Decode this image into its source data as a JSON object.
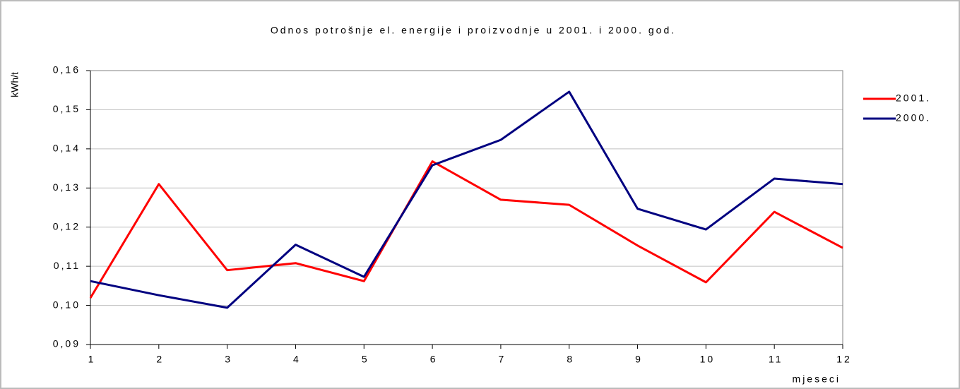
{
  "chart_data": {
    "type": "line",
    "title": "Odnos potrošnje el. energije i proizvodnje u 2001. i 2000. god.",
    "y_label": "kWh/t",
    "x_label": "mjeseci",
    "x": [
      1,
      2,
      3,
      4,
      5,
      6,
      7,
      8,
      9,
      10,
      11,
      12
    ],
    "xlim": [
      1,
      12
    ],
    "xticks": [
      1,
      2,
      3,
      4,
      5,
      6,
      7,
      8,
      9,
      10,
      11,
      12
    ],
    "ylim": [
      0.09,
      0.16
    ],
    "yticks": [
      {
        "value": 0.09,
        "label": "0,09"
      },
      {
        "value": 0.1,
        "label": "0,10"
      },
      {
        "value": 0.11,
        "label": "0,11"
      },
      {
        "value": 0.12,
        "label": "0,12"
      },
      {
        "value": 0.13,
        "label": "0,13"
      },
      {
        "value": 0.14,
        "label": "0,14"
      },
      {
        "value": 0.15,
        "label": "0,15"
      },
      {
        "value": 0.16,
        "label": "0,16"
      }
    ],
    "grid": true,
    "legend": "right",
    "series": [
      {
        "name": "2001.",
        "color": "#ff0000",
        "values": [
          0.1019,
          0.131,
          0.109,
          0.1108,
          0.1062,
          0.1368,
          0.127,
          0.1257,
          0.1153,
          0.1059,
          0.1239,
          0.1147
        ]
      },
      {
        "name": "2000.",
        "color": "#000080",
        "values": [
          0.1062,
          0.1026,
          0.0994,
          0.1155,
          0.1073,
          0.1358,
          0.1423,
          0.1546,
          0.1247,
          0.1194,
          0.1324,
          0.131
        ]
      }
    ]
  }
}
